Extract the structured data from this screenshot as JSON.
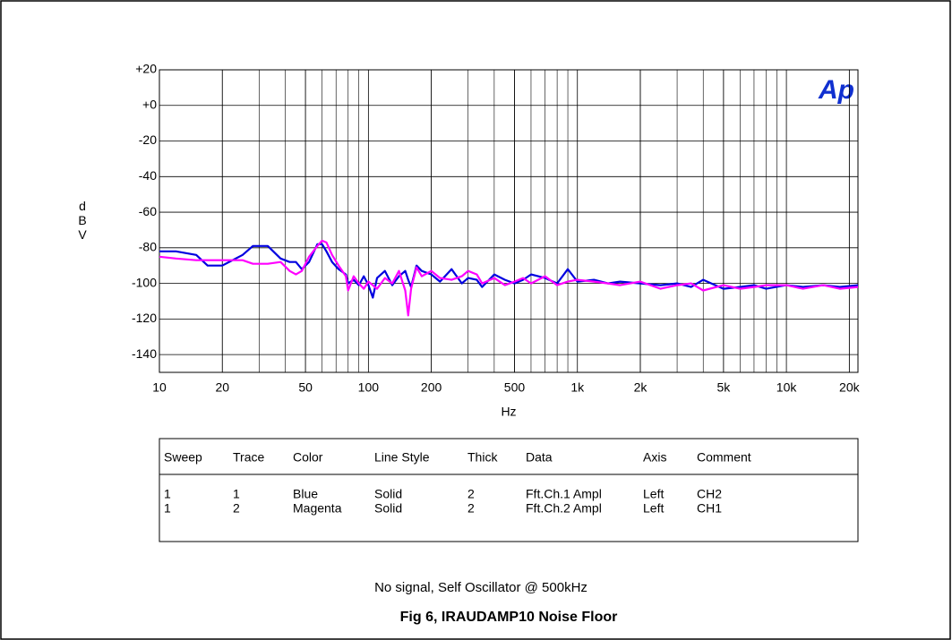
{
  "chart_data": {
    "type": "line",
    "logo": "Ap",
    "xlabel": "Hz",
    "ylabel": "dBV",
    "xscale": "log",
    "grid": true,
    "xlim": [
      10,
      22000
    ],
    "ylim": [
      -150,
      20
    ],
    "xticks": [
      10,
      20,
      50,
      100,
      200,
      500,
      {
        "value": 1000,
        "label": "1k"
      },
      {
        "value": 2000,
        "label": "2k"
      },
      {
        "value": 5000,
        "label": "5k"
      },
      {
        "value": 10000,
        "label": "10k"
      },
      {
        "value": 20000,
        "label": "20k"
      }
    ],
    "yticks": [
      {
        "value": 20,
        "label": "+20"
      },
      {
        "value": 0,
        "label": "+0"
      },
      -20,
      -40,
      -60,
      -80,
      -100,
      -120,
      -140
    ],
    "x": [
      10,
      12,
      15,
      17,
      20,
      25,
      28,
      33,
      38,
      42,
      45,
      48,
      52,
      57,
      60,
      63,
      67,
      72,
      78,
      80,
      85,
      90,
      95,
      100,
      105,
      110,
      120,
      130,
      140,
      150,
      155,
      160,
      170,
      180,
      200,
      220,
      250,
      280,
      300,
      330,
      350,
      400,
      450,
      500,
      550,
      600,
      700,
      800,
      900,
      1000,
      1200,
      1400,
      1600,
      2000,
      2500,
      3000,
      3500,
      4000,
      5000,
      6000,
      7000,
      8000,
      10000,
      12000,
      15000,
      18000,
      22000
    ],
    "series": [
      {
        "name": "Blue",
        "color": "#0000e0",
        "values": [
          -82,
          -82,
          -84,
          -90,
          -90,
          -84,
          -79,
          -79,
          -86,
          -88,
          -88,
          -92,
          -88,
          -78,
          -78,
          -82,
          -88,
          -92,
          -95,
          -100,
          -98,
          -101,
          -96,
          -101,
          -108,
          -97,
          -93,
          -101,
          -96,
          -93,
          -98,
          -102,
          -90,
          -93,
          -95,
          -99,
          -92,
          -100,
          -97,
          -98,
          -102,
          -95,
          -98,
          -100,
          -98,
          -95,
          -97,
          -100,
          -92,
          -99,
          -98,
          -100,
          -99,
          -100,
          -101,
          -100,
          -102,
          -98,
          -103,
          -102,
          -101,
          -103,
          -101,
          -102,
          -101,
          -102,
          -101
        ]
      },
      {
        "name": "Magenta",
        "color": "#ff00ff",
        "values": [
          -85,
          -86,
          -87,
          -87,
          -87,
          -87,
          -89,
          -89,
          -88,
          -93,
          -95,
          -93,
          -85,
          -79,
          -76,
          -77,
          -84,
          -90,
          -96,
          -104,
          -96,
          -100,
          -103,
          -99,
          -101,
          -103,
          -97,
          -100,
          -93,
          -104,
          -118,
          -103,
          -91,
          -96,
          -93,
          -97,
          -98,
          -96,
          -93,
          -95,
          -100,
          -97,
          -101,
          -99,
          -97,
          -100,
          -96,
          -101,
          -99,
          -98,
          -99,
          -100,
          -101,
          -99,
          -103,
          -101,
          -100,
          -104,
          -101,
          -103,
          -102,
          -101,
          -101,
          -103,
          -101,
          -103,
          -102
        ]
      }
    ]
  },
  "table": {
    "header": [
      "Sweep",
      "Trace",
      "Color",
      "Line Style",
      "Thick",
      "Data",
      "Axis",
      "Comment"
    ],
    "rows": [
      [
        "1",
        "1",
        "Blue",
        "Solid",
        "2",
        "Fft.Ch.1 Ampl",
        "Left",
        "CH2"
      ],
      [
        "1",
        "2",
        "Magenta",
        "Solid",
        "2",
        "Fft.Ch.2 Ampl",
        "Left",
        "CH1"
      ]
    ]
  },
  "caption": {
    "subtitle": "No signal, Self Oscillator @ 500kHz",
    "title": "Fig 6, IRAUDAMP10 Noise Floor"
  }
}
